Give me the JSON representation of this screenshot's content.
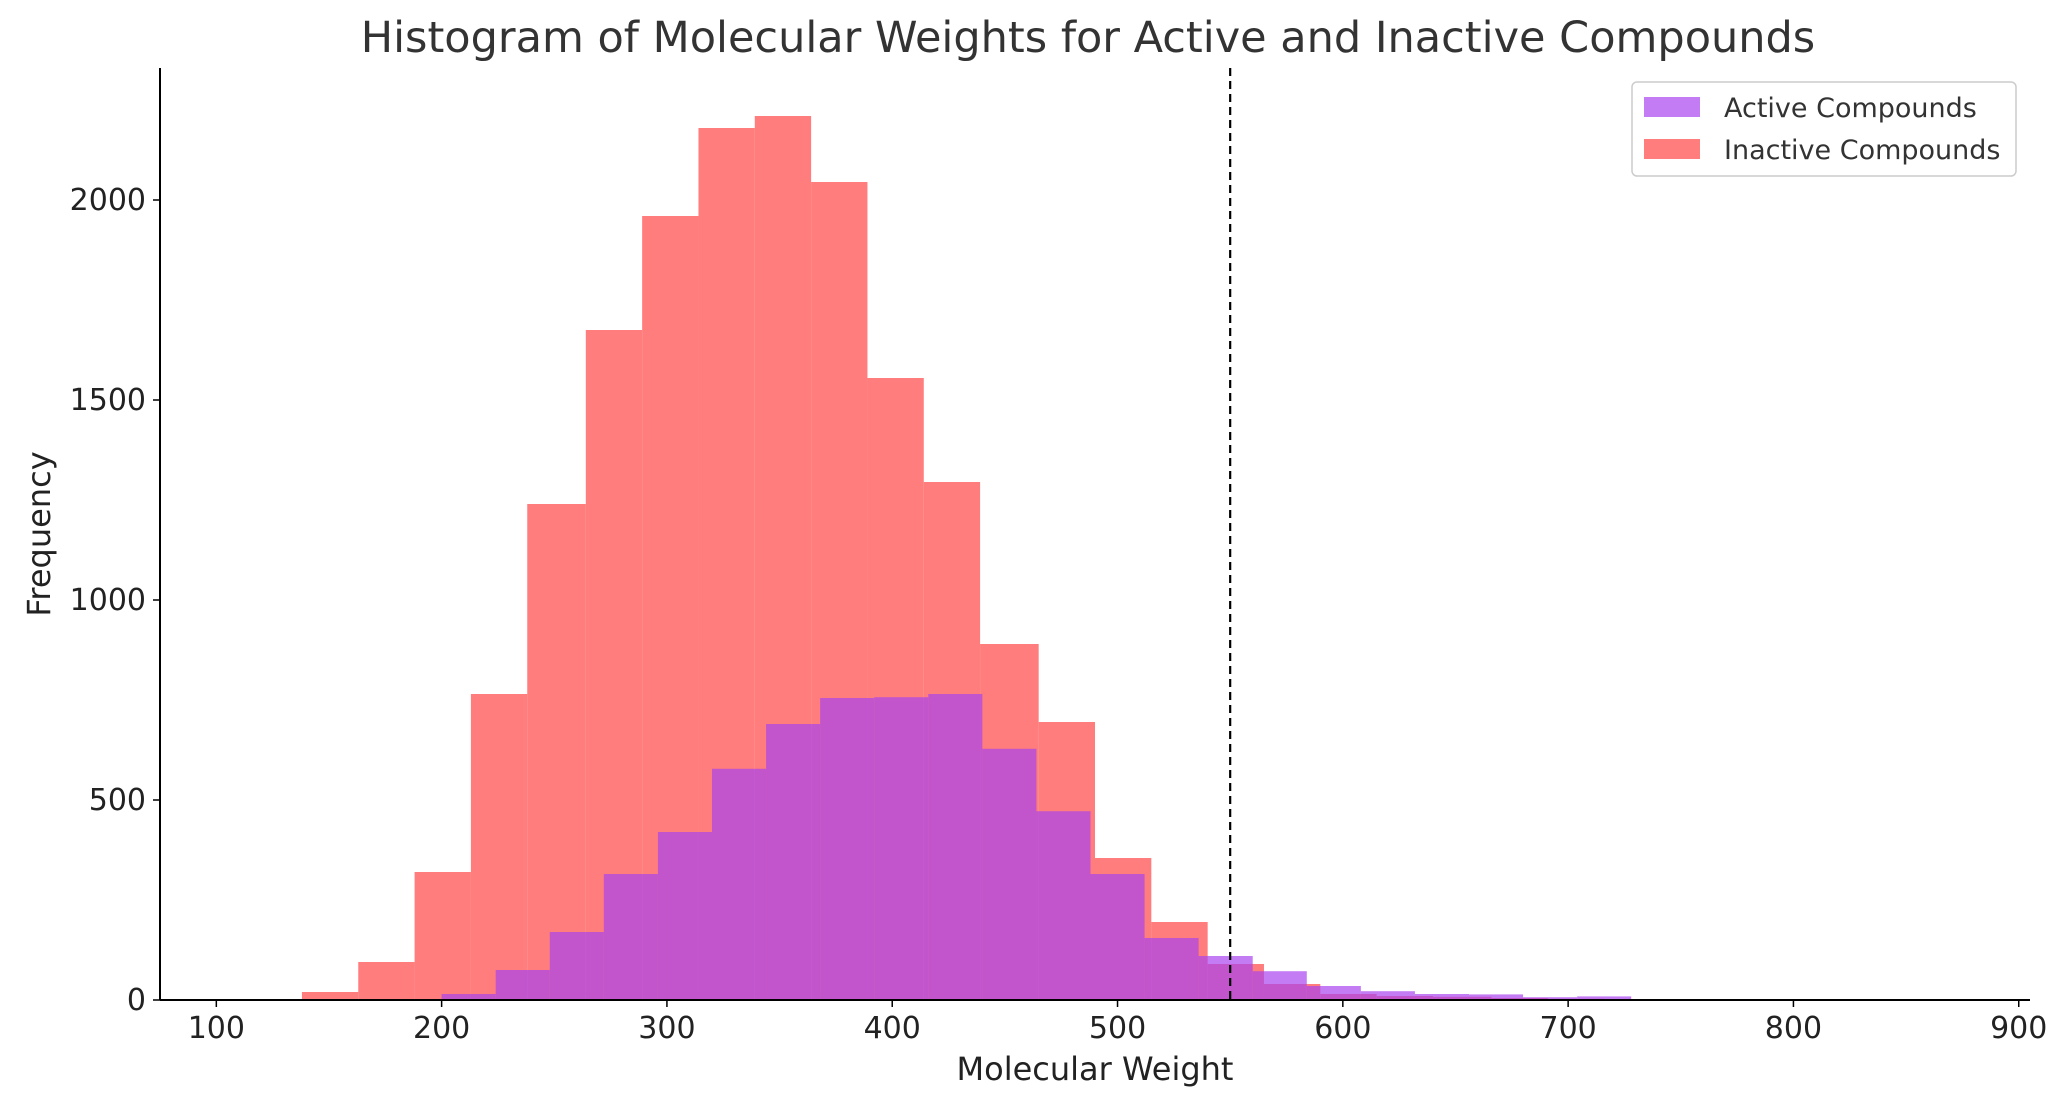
{
  "chart_data": {
    "type": "bar",
    "title": "Histogram of Molecular Weights for Active and Inactive Compounds",
    "xlabel": "Molecular Weight",
    "ylabel": "Frequency",
    "xlim": [
      75,
      905
    ],
    "ylim": [
      0,
      2330
    ],
    "xticks": [
      100,
      200,
      300,
      400,
      500,
      600,
      700,
      800,
      900
    ],
    "yticks": [
      0,
      500,
      1000,
      1500,
      2000
    ],
    "legend_position": "top-right",
    "threshold_line": {
      "x": 550,
      "style": "dashed",
      "color": "#000000"
    },
    "series": [
      {
        "name": "Inactive Compounds",
        "color": "#ff6666",
        "opacity": 0.85,
        "bins": [
          {
            "x0": 138,
            "x1": 163,
            "value": 20
          },
          {
            "x0": 163,
            "x1": 188,
            "value": 95
          },
          {
            "x0": 188,
            "x1": 213,
            "value": 320
          },
          {
            "x0": 213,
            "x1": 238,
            "value": 765
          },
          {
            "x0": 238,
            "x1": 264,
            "value": 1240
          },
          {
            "x0": 264,
            "x1": 289,
            "value": 1675
          },
          {
            "x0": 289,
            "x1": 314,
            "value": 1960
          },
          {
            "x0": 314,
            "x1": 339,
            "value": 2180
          },
          {
            "x0": 339,
            "x1": 364,
            "value": 2210
          },
          {
            "x0": 364,
            "x1": 389,
            "value": 2045
          },
          {
            "x0": 389,
            "x1": 414,
            "value": 1555
          },
          {
            "x0": 414,
            "x1": 439,
            "value": 1295
          },
          {
            "x0": 439,
            "x1": 465,
            "value": 890
          },
          {
            "x0": 465,
            "x1": 490,
            "value": 695
          },
          {
            "x0": 490,
            "x1": 515,
            "value": 355
          },
          {
            "x0": 515,
            "x1": 540,
            "value": 195
          },
          {
            "x0": 540,
            "x1": 565,
            "value": 90
          },
          {
            "x0": 565,
            "x1": 590,
            "value": 40
          },
          {
            "x0": 590,
            "x1": 615,
            "value": 15
          },
          {
            "x0": 615,
            "x1": 640,
            "value": 10
          },
          {
            "x0": 640,
            "x1": 666,
            "value": 8
          },
          {
            "x0": 666,
            "x1": 691,
            "value": 5
          },
          {
            "x0": 691,
            "x1": 716,
            "value": 3
          }
        ]
      },
      {
        "name": "Active Compounds",
        "color": "#aa44ee",
        "opacity": 0.7,
        "bins": [
          {
            "x0": 200,
            "x1": 224,
            "value": 15
          },
          {
            "x0": 224,
            "x1": 248,
            "value": 75
          },
          {
            "x0": 248,
            "x1": 272,
            "value": 170
          },
          {
            "x0": 272,
            "x1": 296,
            "value": 315
          },
          {
            "x0": 296,
            "x1": 320,
            "value": 420
          },
          {
            "x0": 320,
            "x1": 344,
            "value": 578
          },
          {
            "x0": 344,
            "x1": 368,
            "value": 690
          },
          {
            "x0": 368,
            "x1": 392,
            "value": 755
          },
          {
            "x0": 392,
            "x1": 416,
            "value": 757
          },
          {
            "x0": 416,
            "x1": 440,
            "value": 765
          },
          {
            "x0": 440,
            "x1": 464,
            "value": 628
          },
          {
            "x0": 464,
            "x1": 488,
            "value": 472
          },
          {
            "x0": 488,
            "x1": 512,
            "value": 315
          },
          {
            "x0": 512,
            "x1": 536,
            "value": 155
          },
          {
            "x0": 536,
            "x1": 560,
            "value": 110
          },
          {
            "x0": 560,
            "x1": 584,
            "value": 72
          },
          {
            "x0": 584,
            "x1": 608,
            "value": 35
          },
          {
            "x0": 608,
            "x1": 632,
            "value": 22
          },
          {
            "x0": 632,
            "x1": 656,
            "value": 15
          },
          {
            "x0": 656,
            "x1": 680,
            "value": 14
          },
          {
            "x0": 680,
            "x1": 704,
            "value": 7
          },
          {
            "x0": 704,
            "x1": 728,
            "value": 9
          }
        ]
      }
    ]
  }
}
